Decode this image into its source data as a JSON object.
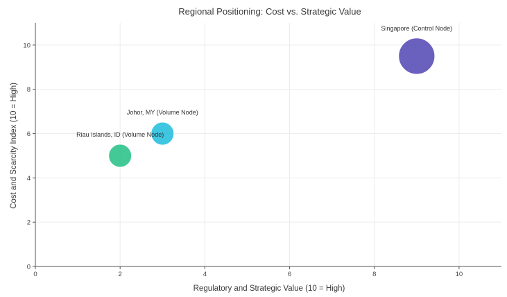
{
  "chart_data": {
    "type": "scatter",
    "title": "Regional Positioning: Cost vs. Strategic Value",
    "xlabel": "Regulatory and Strategic Value (10 = High)",
    "ylabel": "Cost and Scarcity Index (10 = High)",
    "xlim": [
      0,
      11
    ],
    "ylim": [
      0,
      11
    ],
    "xticks": [
      0,
      2,
      4,
      6,
      8,
      10
    ],
    "yticks": [
      0,
      2,
      4,
      6,
      8,
      10
    ],
    "grid": true,
    "points": [
      {
        "label": "Singapore (Control Node)",
        "x": 9,
        "y": 9.5,
        "size": 10,
        "color": "#5a4fb8"
      },
      {
        "label": "Johor, MY (Volume Node)",
        "x": 3,
        "y": 6,
        "size": 5,
        "color": "#2bc0de"
      },
      {
        "label": "Riau Islands, ID (Volume Node)",
        "x": 2,
        "y": 5,
        "size": 5,
        "color": "#2ec48a"
      }
    ]
  }
}
